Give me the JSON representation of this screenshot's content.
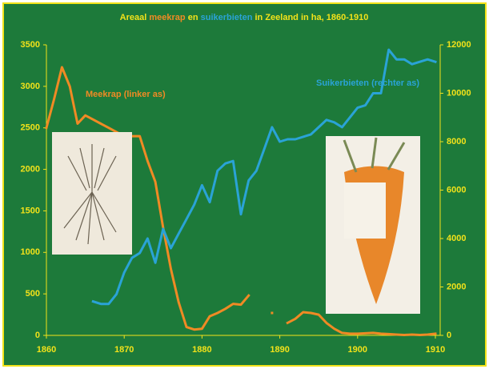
{
  "chart_data": {
    "type": "line",
    "title_parts": [
      {
        "text": "Areaal",
        "color": "#f2e21a"
      },
      {
        "text": "meekrap",
        "color": "#f08a24"
      },
      {
        "text": "en",
        "color": "#f2e21a"
      },
      {
        "text": "suikerbieten",
        "color": "#2aa3d6"
      },
      {
        "text": "in Zeeland in ha, 1860-1910",
        "color": "#f2e21a"
      }
    ],
    "x": [
      1860,
      1861,
      1862,
      1863,
      1864,
      1865,
      1866,
      1867,
      1868,
      1869,
      1870,
      1871,
      1872,
      1873,
      1874,
      1875,
      1876,
      1877,
      1878,
      1879,
      1880,
      1881,
      1882,
      1883,
      1884,
      1885,
      1886,
      1887,
      1888,
      1889,
      1890,
      1891,
      1892,
      1893,
      1894,
      1895,
      1896,
      1897,
      1898,
      1899,
      1900,
      1901,
      1902,
      1903,
      1904,
      1905,
      1906,
      1907,
      1908,
      1909,
      1910
    ],
    "xlim": [
      1860,
      1910
    ],
    "xticks": [
      1860,
      1870,
      1880,
      1890,
      1900,
      1910
    ],
    "ylim": [
      0,
      3500
    ],
    "yticks": [
      0,
      500,
      1000,
      1500,
      2000,
      2500,
      3000,
      3500
    ],
    "y2lim": [
      0,
      12000
    ],
    "y2ticks": [
      0,
      2000,
      4000,
      6000,
      8000,
      10000,
      12000
    ],
    "series": [
      {
        "name": "Meekrap (linker as)",
        "color": "#f08a24",
        "axis": "y",
        "values": [
          2500,
          2850,
          3230,
          3000,
          2550,
          2650,
          2600,
          2550,
          2500,
          2450,
          2400,
          2400,
          2400,
          2100,
          1850,
          1300,
          800,
          400,
          100,
          70,
          80,
          230,
          270,
          320,
          380,
          370,
          480,
          null,
          null,
          270,
          null,
          150,
          200,
          280,
          270,
          250,
          150,
          80,
          30,
          20,
          20,
          25,
          30,
          20,
          15,
          10,
          5,
          10,
          5,
          10,
          20
        ]
      },
      {
        "name": "Suikerbieten (rechter as)",
        "color": "#2aa3d6",
        "axis": "y2",
        "values": [
          null,
          null,
          null,
          null,
          null,
          null,
          1400,
          1300,
          1300,
          1700,
          2600,
          3200,
          3400,
          4000,
          3000,
          4400,
          3600,
          4200,
          4800,
          5400,
          6200,
          5500,
          6800,
          7100,
          7200,
          5000,
          6400,
          6800,
          7700,
          8600,
          8000,
          8100,
          8100,
          8200,
          8300,
          8600,
          8900,
          8800,
          8600,
          9000,
          9400,
          9500,
          10000,
          10000,
          11800,
          11400,
          11400,
          11200,
          11300,
          11400,
          11300
        ]
      }
    ],
    "axis_color": "#f2e21a",
    "background": "#1d7a3a"
  }
}
